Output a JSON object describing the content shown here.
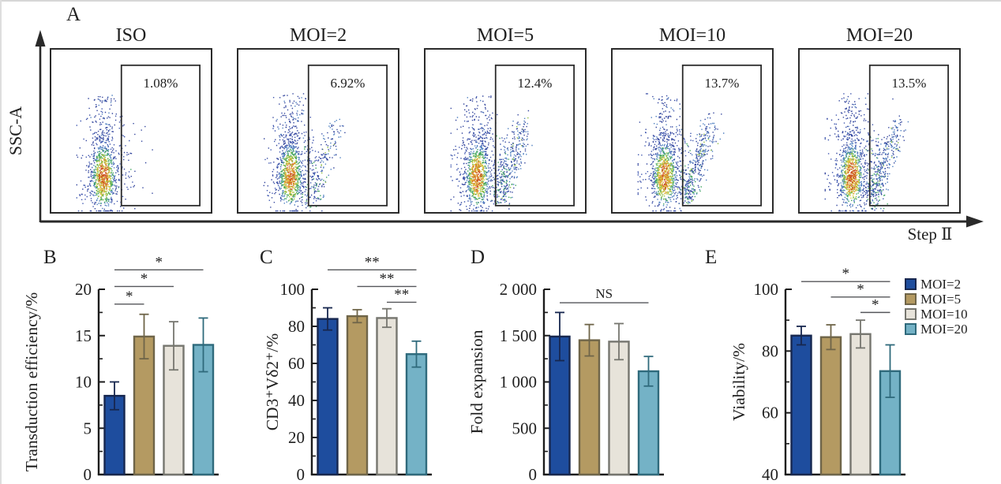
{
  "panel_a": {
    "label": "A",
    "y_axis_label": "SSC-A",
    "x_axis_label": "Step Ⅱ",
    "plots": [
      {
        "title": "ISO",
        "gate_value": "1.08%"
      },
      {
        "title": "MOI=2",
        "gate_value": "6.92%"
      },
      {
        "title": "MOI=5",
        "gate_value": "12.4%"
      },
      {
        "title": "MOI=10",
        "gate_value": "13.7%"
      },
      {
        "title": "MOI=20",
        "gate_value": "13.5%"
      }
    ]
  },
  "legend": {
    "items": [
      {
        "label": "MOI=2",
        "fill": "#1e4d9e",
        "stroke": "#17274f"
      },
      {
        "label": "MOI=5",
        "fill": "#b49a62",
        "stroke": "#6f6549"
      },
      {
        "label": "MOI=10",
        "fill": "#e7e3da",
        "stroke": "#76766f"
      },
      {
        "label": "MOI=20",
        "fill": "#74b2c6",
        "stroke": "#2f6a7c"
      }
    ]
  },
  "chart_data": [
    {
      "panel": "B",
      "type": "bar",
      "title": "",
      "xlabel": "",
      "ylabel": "Transduction efficiency/%",
      "categories": [
        "MOI=2",
        "MOI=5",
        "MOI=10",
        "MOI=20"
      ],
      "values": [
        8.5,
        14.9,
        13.9,
        14.0
      ],
      "errors": [
        1.5,
        2.4,
        2.6,
        2.9
      ],
      "ylim": [
        0,
        20
      ],
      "yticks": [
        0,
        5,
        10,
        15,
        20
      ],
      "ytick_labels": [
        "0",
        "5",
        "10",
        "15",
        "20"
      ],
      "minor_yticks": [
        2.5,
        7.5,
        12.5,
        17.5
      ],
      "grid": false,
      "legend_position": "none",
      "significance": [
        {
          "from": 0,
          "to": 1,
          "y": 18.4,
          "label": "*"
        },
        {
          "from": 0,
          "to": 2,
          "y": 20.3,
          "label": "*"
        },
        {
          "from": 0,
          "to": 3,
          "y": 22.1,
          "label": "*"
        }
      ]
    },
    {
      "panel": "C",
      "type": "bar",
      "title": "",
      "xlabel": "",
      "ylabel": "CD3⁺Vδ2⁺/%",
      "categories": [
        "MOI=2",
        "MOI=5",
        "MOI=10",
        "MOI=20"
      ],
      "values": [
        84,
        85.5,
        84.5,
        65
      ],
      "errors": [
        6,
        3.5,
        5,
        7
      ],
      "ylim": [
        0,
        100
      ],
      "yticks": [
        0,
        20,
        40,
        60,
        80,
        100
      ],
      "ytick_labels": [
        "0",
        "20",
        "40",
        "60",
        "80",
        "100"
      ],
      "minor_yticks": [
        10,
        30,
        50,
        70,
        90
      ],
      "grid": false,
      "legend_position": "none",
      "significance": [
        {
          "from": 0,
          "to": 3,
          "y": 110.5,
          "label": "**"
        },
        {
          "from": 1,
          "to": 3,
          "y": 101.5,
          "label": "**"
        },
        {
          "from": 2,
          "to": 3,
          "y": 93,
          "label": "**"
        }
      ]
    },
    {
      "panel": "D",
      "type": "bar",
      "title": "",
      "xlabel": "",
      "ylabel": "Fold expansion",
      "categories": [
        "MOI=2",
        "MOI=5",
        "MOI=10",
        "MOI=20"
      ],
      "values": [
        1490,
        1450,
        1435,
        1115
      ],
      "errors": [
        260,
        170,
        195,
        160
      ],
      "ylim": [
        0,
        2000
      ],
      "yticks": [
        0,
        500,
        1000,
        1500,
        2000
      ],
      "ytick_labels": [
        "0",
        "500",
        "1 000",
        "1 500",
        "2 000"
      ],
      "minor_yticks": [
        250,
        750,
        1250,
        1750
      ],
      "grid": false,
      "legend_position": "none",
      "significance": [
        {
          "from": 0,
          "to": 3,
          "y": 1855,
          "label": "NS"
        }
      ]
    },
    {
      "panel": "E",
      "type": "bar",
      "title": "",
      "xlabel": "",
      "ylabel": "Viability/%",
      "categories": [
        "MOI=2",
        "MOI=5",
        "MOI=10",
        "MOI=20"
      ],
      "values": [
        85,
        84.5,
        85.5,
        73.5
      ],
      "errors": [
        3,
        4,
        4.5,
        8.5
      ],
      "ylim": [
        40,
        100
      ],
      "yticks": [
        40,
        60,
        80,
        100
      ],
      "ytick_labels": [
        "40",
        "60",
        "80",
        "100"
      ],
      "minor_yticks": [
        50,
        70,
        90
      ],
      "grid": false,
      "legend_position": "right-outside",
      "significance": [
        {
          "from": 0,
          "to": 3,
          "y": 102.5,
          "label": "*"
        },
        {
          "from": 1,
          "to": 3,
          "y": 97.5,
          "label": "*"
        },
        {
          "from": 2,
          "to": 3,
          "y": 92.5,
          "label": "*"
        }
      ]
    }
  ]
}
